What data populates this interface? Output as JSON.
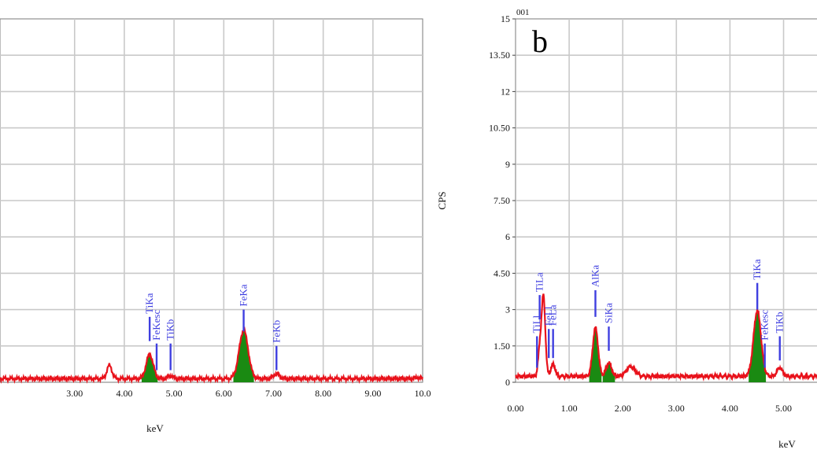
{
  "chart_data": [
    {
      "type": "line",
      "panel_label": "",
      "xlabel": "keV",
      "ylabel": "",
      "xlim": [
        1.5,
        10.0
      ],
      "ylim": [
        0,
        15
      ],
      "grid": true,
      "x_tick_labels": [
        {
          "x": 3.0,
          "label": "3.00"
        },
        {
          "x": 4.0,
          "label": "4.00"
        },
        {
          "x": 5.0,
          "label": "5.00"
        },
        {
          "x": 6.0,
          "label": "6.00"
        },
        {
          "x": 7.0,
          "label": "7.00"
        },
        {
          "x": 8.0,
          "label": "8.00"
        },
        {
          "x": 9.0,
          "label": "9.00"
        },
        {
          "x": 10.0,
          "label": "10.0"
        }
      ],
      "y_gridlines": [
        1.5,
        3,
        4.5,
        6,
        7.5,
        9,
        10.5,
        12,
        13.5,
        15
      ],
      "series": [
        {
          "color": "#e8121b",
          "baseline": 0.15,
          "peaks": [
            {
              "x": 3.7,
              "height": 0.55,
              "width": 0.05
            },
            {
              "x": 4.51,
              "height": 1.0,
              "width": 0.07
            },
            {
              "x": 4.93,
              "height": 0.12,
              "width": 0.05
            },
            {
              "x": 6.4,
              "height": 2.0,
              "width": 0.09
            },
            {
              "x": 7.06,
              "height": 0.2,
              "width": 0.06
            },
            {
              "x": 9.9,
              "height": 0.05,
              "width": 0.05
            }
          ]
        }
      ],
      "filled_peaks": [
        {
          "x": 4.51,
          "width": 0.07,
          "color": "#1a8a12"
        },
        {
          "x": 6.4,
          "width": 0.09,
          "color": "#1a8a12"
        }
      ],
      "annotations": [
        {
          "text": "TiKa",
          "x": 4.51,
          "marker_top": 2.7,
          "marker_bottom": 1.7
        },
        {
          "text": "FeKesc",
          "x": 4.65,
          "marker_top": 1.6,
          "marker_bottom": 0.5
        },
        {
          "text": "TiKb",
          "x": 4.93,
          "marker_top": 1.6,
          "marker_bottom": 0.5
        },
        {
          "text": "FeKa",
          "x": 6.4,
          "marker_top": 3.0,
          "marker_bottom": 2.1
        },
        {
          "text": "FeKb",
          "x": 7.06,
          "marker_top": 1.5,
          "marker_bottom": 0.5
        }
      ]
    },
    {
      "type": "line",
      "panel_label": "b",
      "corner_note": "001",
      "xlabel": "keV",
      "ylabel": "CPS",
      "xlim": [
        0,
        5.8
      ],
      "ylim": [
        0,
        15
      ],
      "grid": true,
      "x_tick_labels": [
        {
          "x": 0.0,
          "label": "0.00"
        },
        {
          "x": 1.0,
          "label": "1.00"
        },
        {
          "x": 2.0,
          "label": "2.00"
        },
        {
          "x": 3.0,
          "label": "3.00"
        },
        {
          "x": 4.0,
          "label": "4.00"
        },
        {
          "x": 5.0,
          "label": "5.00"
        }
      ],
      "y_tick_labels": [
        {
          "y": 0,
          "label": "0"
        },
        {
          "y": 1.5,
          "label": "1.50"
        },
        {
          "y": 3,
          "label": "3"
        },
        {
          "y": 4.5,
          "label": "4.50"
        },
        {
          "y": 6,
          "label": "6"
        },
        {
          "y": 7.5,
          "label": "7.50"
        },
        {
          "y": 9,
          "label": "9"
        },
        {
          "y": 10.5,
          "label": "10.50"
        },
        {
          "y": 12,
          "label": "12"
        },
        {
          "y": 13.5,
          "label": "13.50"
        },
        {
          "y": 15,
          "label": "15"
        }
      ],
      "series": [
        {
          "color": "#e8121b",
          "baseline": 0.25,
          "peaks": [
            {
              "x": 0.45,
              "height": 1.0,
              "width": 0.03
            },
            {
              "x": 0.52,
              "height": 3.3,
              "width": 0.035
            },
            {
              "x": 0.7,
              "height": 0.5,
              "width": 0.04
            },
            {
              "x": 1.49,
              "height": 2.0,
              "width": 0.05
            },
            {
              "x": 1.74,
              "height": 0.55,
              "width": 0.05
            },
            {
              "x": 2.15,
              "height": 0.4,
              "width": 0.08
            },
            {
              "x": 4.51,
              "height": 2.7,
              "width": 0.07
            },
            {
              "x": 4.93,
              "height": 0.35,
              "width": 0.05
            }
          ]
        }
      ],
      "filled_peaks": [
        {
          "x": 1.49,
          "width": 0.05,
          "color": "#1a8a12"
        },
        {
          "x": 1.74,
          "width": 0.05,
          "color": "#1a8a12"
        },
        {
          "x": 4.51,
          "width": 0.07,
          "color": "#1a8a12"
        }
      ],
      "annotations": [
        {
          "text": "TiLl",
          "x": 0.4,
          "marker_top": 1.9,
          "marker_bottom": 0.6
        },
        {
          "text": "TiLa",
          "x": 0.45,
          "marker_top": 3.6,
          "marker_bottom": 2.6
        },
        {
          "text": "FeLl",
          "x": 0.62,
          "marker_top": 2.2,
          "marker_bottom": 1.0
        },
        {
          "text": "FeLa",
          "x": 0.7,
          "marker_top": 2.2,
          "marker_bottom": 1.0
        },
        {
          "text": "AlKa",
          "x": 1.49,
          "marker_top": 3.8,
          "marker_bottom": 2.7
        },
        {
          "text": "SiKa",
          "x": 1.74,
          "marker_top": 2.3,
          "marker_bottom": 1.3
        },
        {
          "text": "TiKa",
          "x": 4.51,
          "marker_top": 4.1,
          "marker_bottom": 3.0
        },
        {
          "text": "FeKesc",
          "x": 4.65,
          "marker_top": 1.6,
          "marker_bottom": 0.6
        },
        {
          "text": "TiKb",
          "x": 4.93,
          "marker_top": 1.9,
          "marker_bottom": 0.9
        }
      ]
    }
  ]
}
